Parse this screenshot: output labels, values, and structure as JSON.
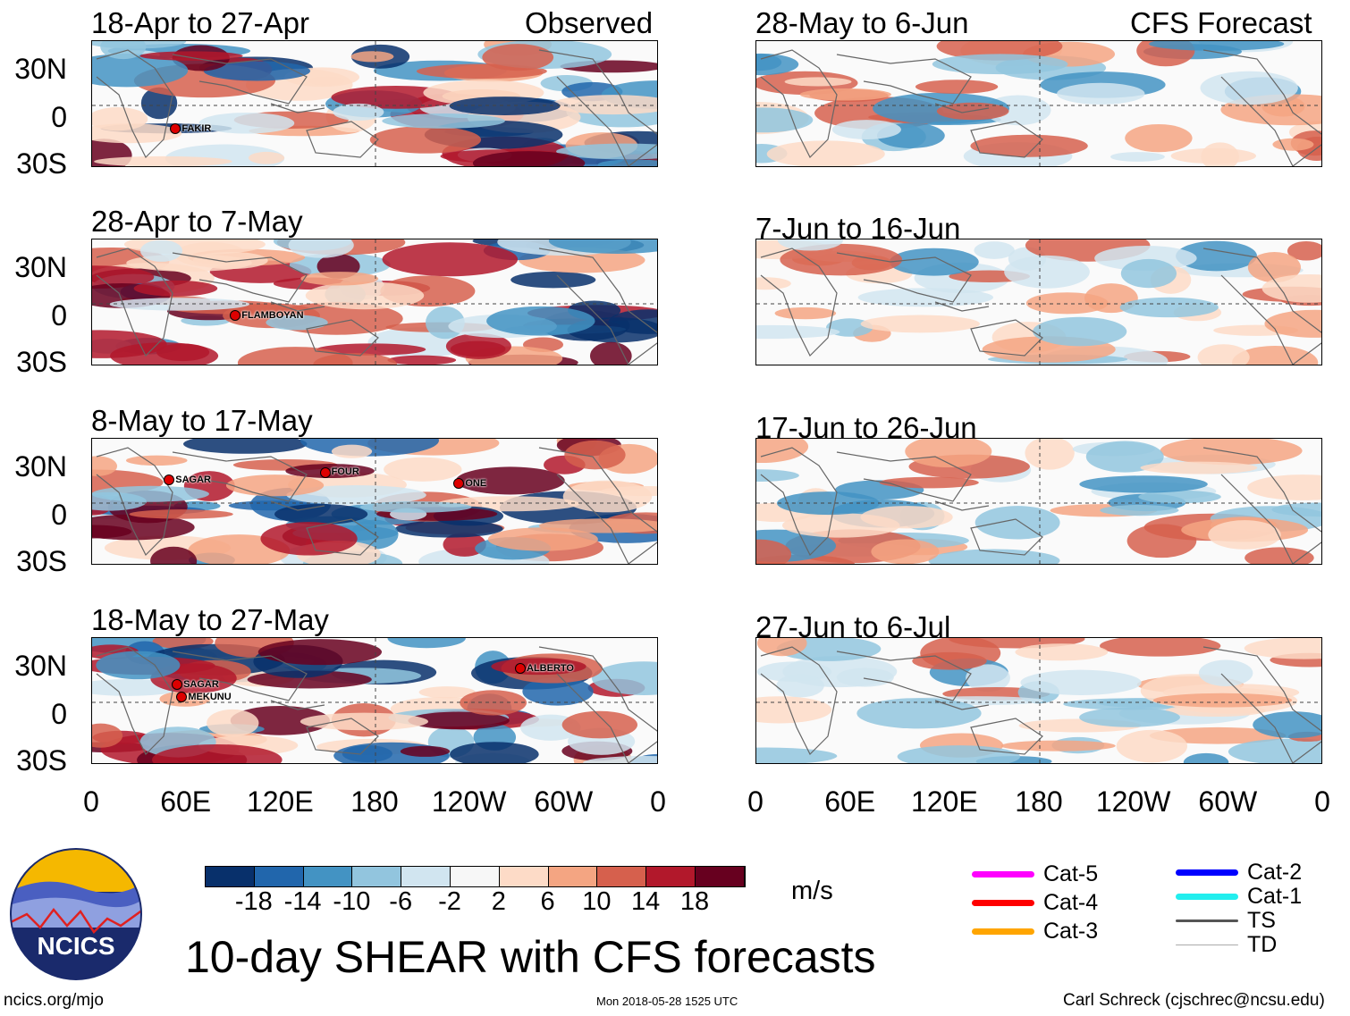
{
  "columns": {
    "left": "Observed",
    "right": "CFS Forecast"
  },
  "panels": [
    {
      "title": "18-Apr to 27-Apr",
      "col": "left",
      "row": 0,
      "storms": [
        {
          "name": "FAKIR",
          "lon": 53,
          "lat": -15
        }
      ]
    },
    {
      "title": "28-Apr to 7-May",
      "col": "left",
      "row": 1,
      "storms": [
        {
          "name": "FLAMBOYAN",
          "lon": 91,
          "lat": -8
        }
      ]
    },
    {
      "title": "8-May to 17-May",
      "col": "left",
      "row": 2,
      "storms": [
        {
          "name": "SAGAR",
          "lon": 49,
          "lat": 14
        },
        {
          "name": "FOUR",
          "lon": 148,
          "lat": 19
        },
        {
          "name": "ONE",
          "lon": 233,
          "lat": 12
        }
      ]
    },
    {
      "title": "18-May to 27-May",
      "col": "left",
      "row": 3,
      "storms": [
        {
          "name": "SAGAR",
          "lon": 54,
          "lat": 11
        },
        {
          "name": "MEKUNU",
          "lon": 57,
          "lat": 8
        },
        {
          "name": "ALBERTO",
          "lon": 272,
          "lat": 21
        }
      ]
    },
    {
      "title": "28-May to 6-Jun",
      "col": "right",
      "row": 0,
      "storms": []
    },
    {
      "title": "7-Jun to 16-Jun",
      "col": "right",
      "row": 1,
      "storms": []
    },
    {
      "title": "17-Jun to 26-Jun",
      "col": "right",
      "row": 2,
      "storms": []
    },
    {
      "title": "27-Jun to 6-Jul",
      "col": "right",
      "row": 3,
      "storms": []
    }
  ],
  "lat_labels": [
    "30N",
    "0",
    "30S"
  ],
  "lon_labels": [
    "0",
    "60E",
    "120E",
    "180",
    "120W",
    "60W",
    "0"
  ],
  "colorbar": {
    "colors": [
      "#08306b",
      "#2166ac",
      "#4393c3",
      "#92c5de",
      "#d1e5f0",
      "#f7f7f7",
      "#fddbc7",
      "#f4a582",
      "#d6604d",
      "#b2182b",
      "#67001f"
    ],
    "labels": [
      "-18",
      "-14",
      "-10",
      "-6",
      "-2",
      "2",
      "6",
      "10",
      "14",
      "18"
    ],
    "units": "m/s"
  },
  "legend": [
    {
      "label": "Cat-5",
      "color": "#ff00ff"
    },
    {
      "label": "Cat-4",
      "color": "#ff0000"
    },
    {
      "label": "Cat-3",
      "color": "#ffa500"
    },
    {
      "label": "Cat-2",
      "color": "#0000ff"
    },
    {
      "label": "Cat-1",
      "color": "#22eeee"
    },
    {
      "label": "TS",
      "color": "#555555"
    },
    {
      "label": "TD",
      "color": "#aaaaaa"
    }
  ],
  "logo_text": "NCICS",
  "main_title": "10-day SHEAR with CFS forecasts",
  "footer": {
    "left": "ncics.org/mjo",
    "center": "Mon 2018-05-28 1525 UTC",
    "right": "Carl Schreck (cjschrec@ncsu.edu)"
  }
}
